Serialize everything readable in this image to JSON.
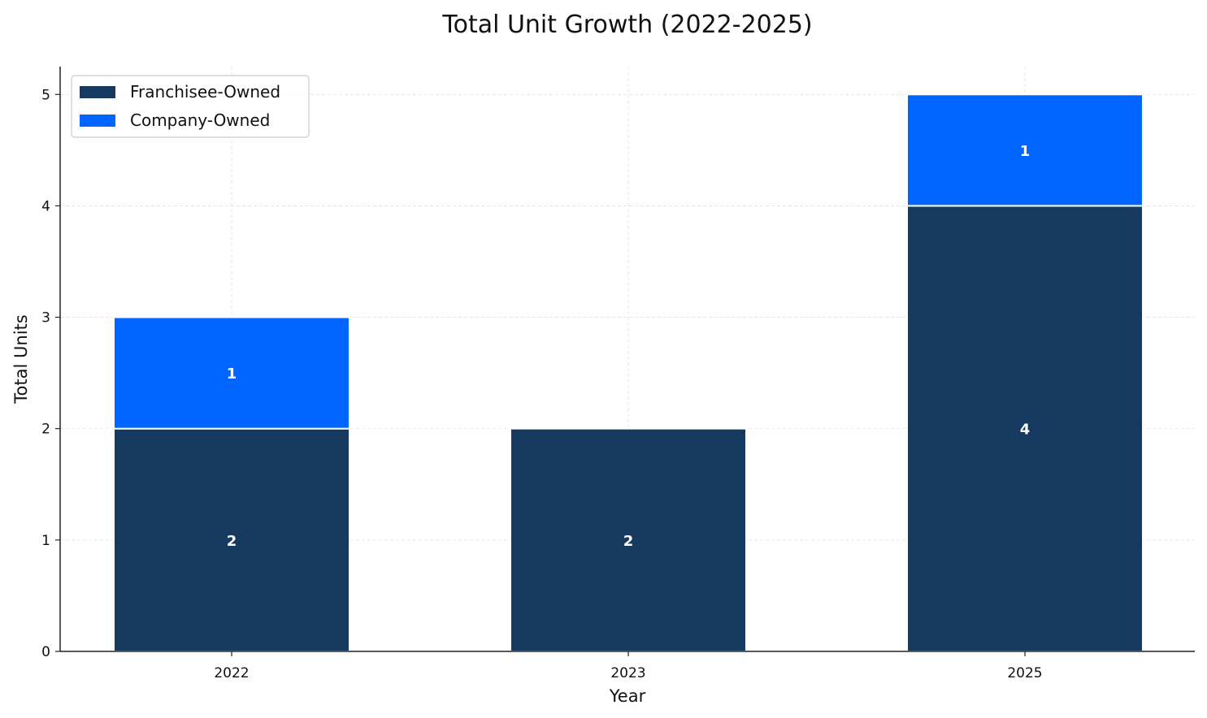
{
  "chart_data": {
    "type": "bar",
    "stacked": true,
    "title": "Total Unit Growth (2022-2025)",
    "xlabel": "Year",
    "ylabel": "Total Units",
    "categories": [
      "2022",
      "2023",
      "2025"
    ],
    "series": [
      {
        "name": "Franchisee-Owned",
        "values": [
          2,
          2,
          4
        ],
        "color": "#163A5F"
      },
      {
        "name": "Company-Owned",
        "values": [
          1,
          0,
          1
        ],
        "color": "#0066FF"
      }
    ],
    "ylim": [
      0,
      5.25
    ],
    "yticks": [
      0,
      1,
      2,
      3,
      4,
      5
    ],
    "grid": true,
    "legend": "top-left"
  }
}
